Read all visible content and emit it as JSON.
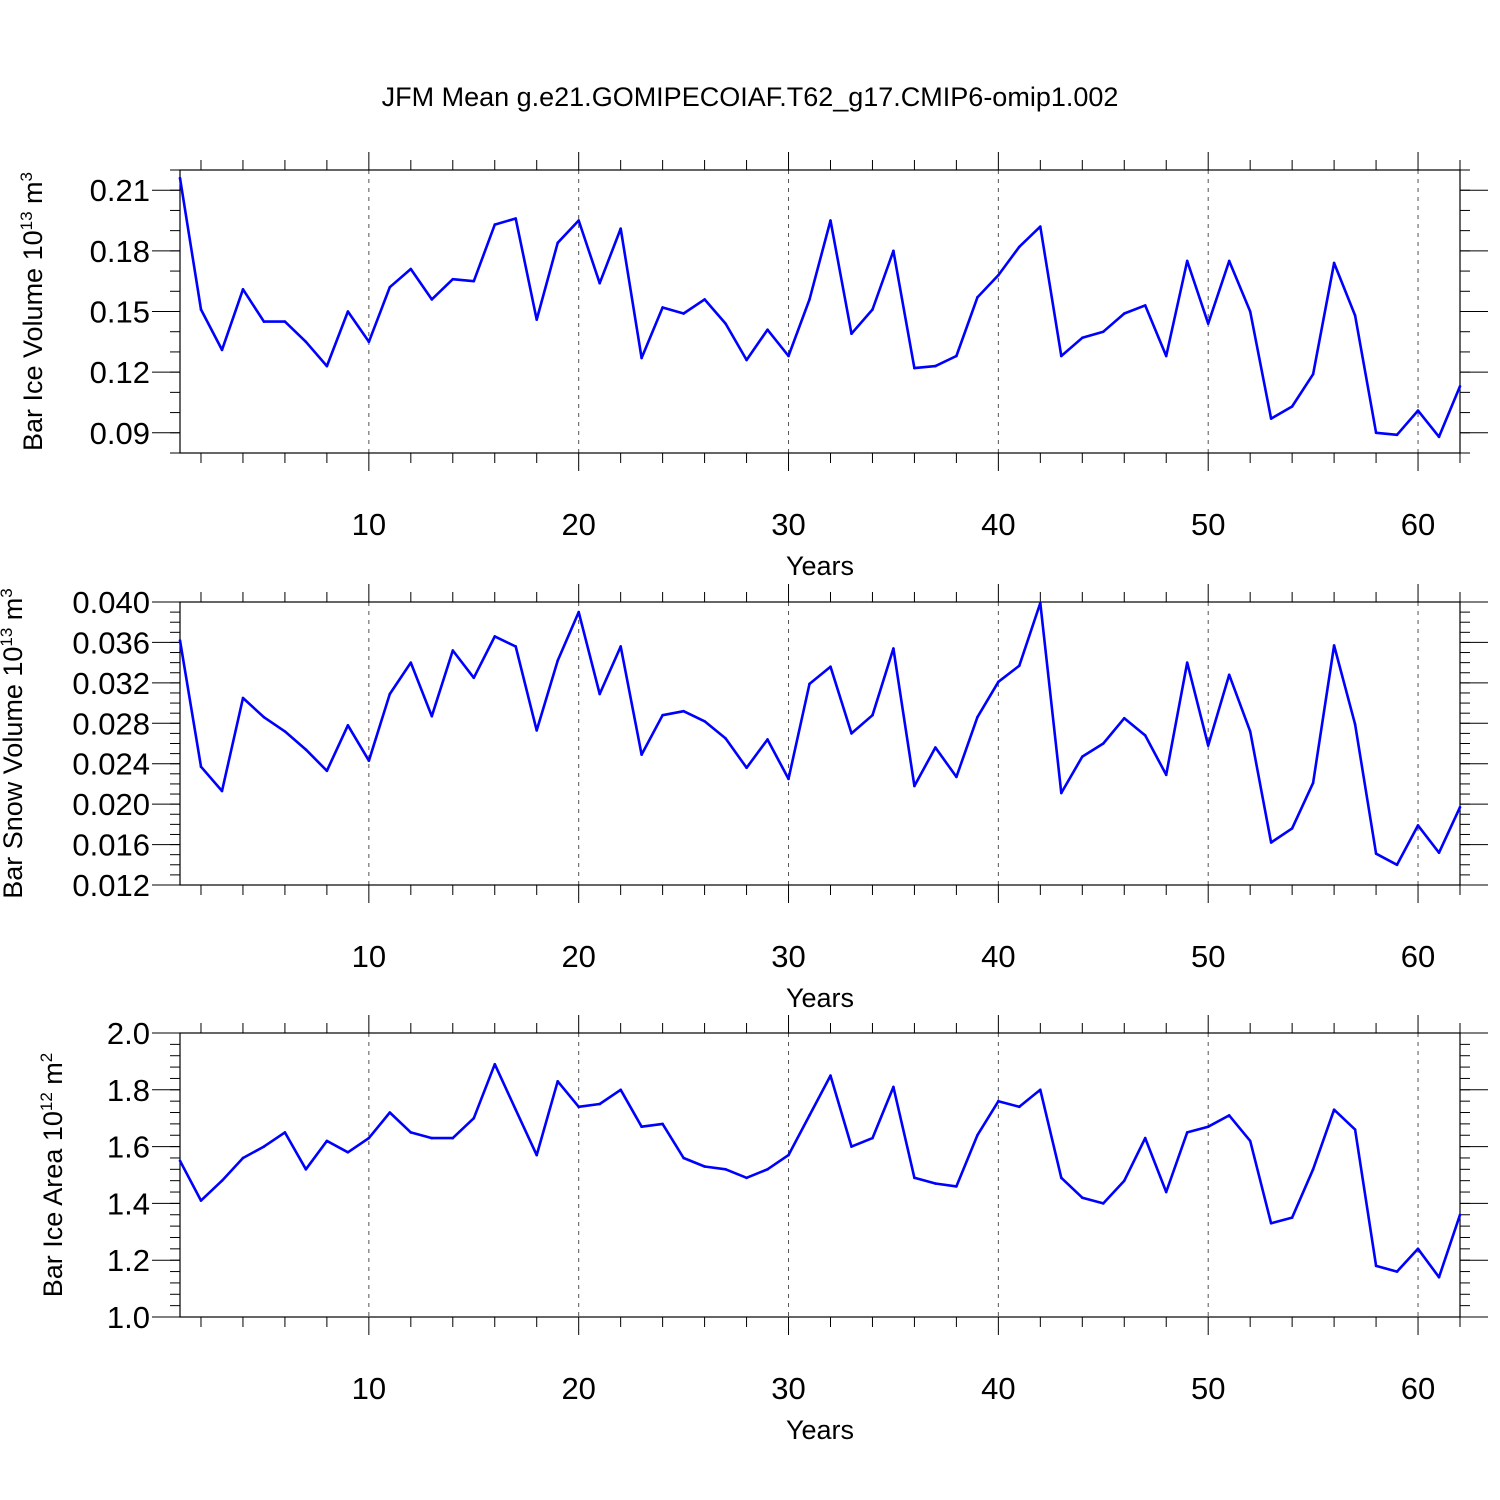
{
  "title": "JFM Mean g.e21.GOMIPECOIAF.T62_g17.CMIP6-omip1.002",
  "colors": {
    "series": "#0000ff",
    "frame": "#000000",
    "grid": "#555555"
  },
  "chart_data": [
    {
      "type": "line",
      "ylabel_main": "Bar Ice Volume 10",
      "ylabel_exp": "13",
      "ylabel_unit": " m",
      "ylabel_unit_exp": "3",
      "xlabel": "Years",
      "xlim": [
        1,
        62
      ],
      "ylim": [
        0.08,
        0.22
      ],
      "yticks": [
        0.09,
        0.12,
        0.15,
        0.18,
        0.21
      ],
      "ytick_labels": [
        "0.09",
        "0.12",
        "0.15",
        "0.18",
        "0.21"
      ],
      "yminor_step": 0.01,
      "xticks": [
        10,
        20,
        30,
        40,
        50,
        60
      ],
      "xtick_labels": [
        "10",
        "20",
        "30",
        "40",
        "50",
        "60"
      ],
      "grid_x": true,
      "x": [
        1,
        2,
        3,
        4,
        5,
        6,
        7,
        8,
        9,
        10,
        11,
        12,
        13,
        14,
        15,
        16,
        17,
        18,
        19,
        20,
        21,
        22,
        23,
        24,
        25,
        26,
        27,
        28,
        29,
        30,
        31,
        32,
        33,
        34,
        35,
        36,
        37,
        38,
        39,
        40,
        41,
        42,
        43,
        44,
        45,
        46,
        47,
        48,
        49,
        50,
        51,
        52,
        53,
        54,
        55,
        56,
        57,
        58,
        59,
        60,
        61,
        62
      ],
      "values": [
        0.216,
        0.151,
        0.131,
        0.161,
        0.145,
        0.145,
        0.135,
        0.123,
        0.15,
        0.135,
        0.162,
        0.171,
        0.156,
        0.166,
        0.165,
        0.193,
        0.196,
        0.146,
        0.184,
        0.195,
        0.164,
        0.191,
        0.127,
        0.152,
        0.149,
        0.156,
        0.144,
        0.126,
        0.141,
        0.128,
        0.156,
        0.195,
        0.139,
        0.151,
        0.18,
        0.122,
        0.123,
        0.128,
        0.157,
        0.168,
        0.182,
        0.192,
        0.128,
        0.137,
        0.14,
        0.149,
        0.153,
        0.128,
        0.175,
        0.144,
        0.175,
        0.15,
        0.097,
        0.103,
        0.119,
        0.174,
        0.148,
        0.09,
        0.089,
        0.101,
        0.088,
        0.113
      ]
    },
    {
      "type": "line",
      "ylabel_main": "Bar Snow Volume 10",
      "ylabel_exp": "13",
      "ylabel_unit": " m",
      "ylabel_unit_exp": "3",
      "xlabel": "Years",
      "xlim": [
        1,
        62
      ],
      "ylim": [
        0.012,
        0.04
      ],
      "yticks": [
        0.012,
        0.016,
        0.02,
        0.024,
        0.028,
        0.032,
        0.036,
        0.04
      ],
      "ytick_labels": [
        "0.012",
        "0.016",
        "0.020",
        "0.024",
        "0.028",
        "0.032",
        "0.036",
        "0.040"
      ],
      "yminor_step": 0.001,
      "xticks": [
        10,
        20,
        30,
        40,
        50,
        60
      ],
      "xtick_labels": [
        "10",
        "20",
        "30",
        "40",
        "50",
        "60"
      ],
      "grid_x": true,
      "x": [
        1,
        2,
        3,
        4,
        5,
        6,
        7,
        8,
        9,
        10,
        11,
        12,
        13,
        14,
        15,
        16,
        17,
        18,
        19,
        20,
        21,
        22,
        23,
        24,
        25,
        26,
        27,
        28,
        29,
        30,
        31,
        32,
        33,
        34,
        35,
        36,
        37,
        38,
        39,
        40,
        41,
        42,
        43,
        44,
        45,
        46,
        47,
        48,
        49,
        50,
        51,
        52,
        53,
        54,
        55,
        56,
        57,
        58,
        59,
        60,
        61,
        62
      ],
      "values": [
        0.0362,
        0.0237,
        0.0213,
        0.0305,
        0.0286,
        0.0272,
        0.0254,
        0.0233,
        0.0278,
        0.0243,
        0.0309,
        0.034,
        0.0287,
        0.0352,
        0.0325,
        0.0366,
        0.0356,
        0.0273,
        0.0342,
        0.039,
        0.0309,
        0.0356,
        0.0249,
        0.0288,
        0.0292,
        0.0282,
        0.0265,
        0.0236,
        0.0264,
        0.0225,
        0.0319,
        0.0336,
        0.027,
        0.0288,
        0.0354,
        0.0218,
        0.0256,
        0.0227,
        0.0286,
        0.0321,
        0.0337,
        0.0399,
        0.0211,
        0.0247,
        0.026,
        0.0285,
        0.0268,
        0.0229,
        0.034,
        0.0258,
        0.0328,
        0.0272,
        0.0162,
        0.0176,
        0.0221,
        0.0357,
        0.0279,
        0.0151,
        0.014,
        0.0179,
        0.0152,
        0.0197
      ]
    },
    {
      "type": "line",
      "ylabel_main": "Bar Ice Area 10",
      "ylabel_exp": "12",
      "ylabel_unit": " m",
      "ylabel_unit_exp": "2",
      "xlabel": "Years",
      "xlim": [
        1,
        62
      ],
      "ylim": [
        1.0,
        2.0
      ],
      "yticks": [
        1.0,
        1.2,
        1.4,
        1.6,
        1.8,
        2.0
      ],
      "ytick_labels": [
        "1.0",
        "1.2",
        "1.4",
        "1.6",
        "1.8",
        "2.0"
      ],
      "yminor_step": 0.04,
      "xticks": [
        10,
        20,
        30,
        40,
        50,
        60
      ],
      "xtick_labels": [
        "10",
        "20",
        "30",
        "40",
        "50",
        "60"
      ],
      "grid_x": true,
      "x": [
        1,
        2,
        3,
        4,
        5,
        6,
        7,
        8,
        9,
        10,
        11,
        12,
        13,
        14,
        15,
        16,
        17,
        18,
        19,
        20,
        21,
        22,
        23,
        24,
        25,
        26,
        27,
        28,
        29,
        30,
        31,
        32,
        33,
        34,
        35,
        36,
        37,
        38,
        39,
        40,
        41,
        42,
        43,
        44,
        45,
        46,
        47,
        48,
        49,
        50,
        51,
        52,
        53,
        54,
        55,
        56,
        57,
        58,
        59,
        60,
        61,
        62
      ],
      "values": [
        1.55,
        1.41,
        1.48,
        1.56,
        1.6,
        1.65,
        1.52,
        1.62,
        1.58,
        1.63,
        1.72,
        1.65,
        1.63,
        1.63,
        1.7,
        1.89,
        1.73,
        1.57,
        1.83,
        1.74,
        1.75,
        1.8,
        1.67,
        1.68,
        1.56,
        1.53,
        1.52,
        1.49,
        1.52,
        1.57,
        1.71,
        1.85,
        1.6,
        1.63,
        1.81,
        1.49,
        1.47,
        1.46,
        1.64,
        1.76,
        1.74,
        1.8,
        1.49,
        1.42,
        1.4,
        1.48,
        1.63,
        1.44,
        1.65,
        1.67,
        1.71,
        1.62,
        1.33,
        1.35,
        1.52,
        1.73,
        1.66,
        1.18,
        1.16,
        1.24,
        1.14,
        1.36
      ]
    }
  ]
}
